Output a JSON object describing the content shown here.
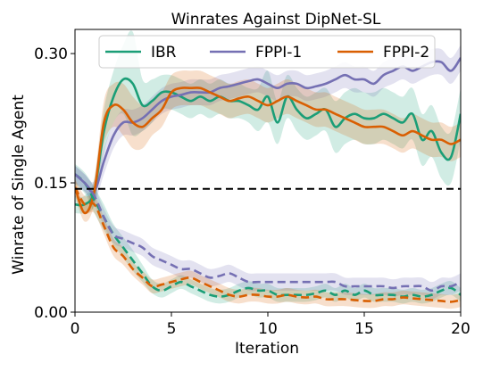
{
  "chart_data": {
    "type": "line",
    "title": "Winrates Against DipNet-SL",
    "xlabel": "Iteration",
    "ylabel": "Winrate of Single Agent",
    "xlim": [
      0,
      20
    ],
    "ylim": [
      0,
      0.3
    ],
    "xticks": [
      0,
      5,
      10,
      15,
      20
    ],
    "xtick_labels": [
      "0",
      "5",
      "10",
      "15",
      "20"
    ],
    "yticks": [
      0.0,
      0.15,
      0.3
    ],
    "ytick_labels": [
      "0.00",
      "0.15",
      "0.30"
    ],
    "grid": false,
    "legend_position": "top",
    "x": [
      0,
      0.5,
      1,
      1.5,
      2,
      2.5,
      3,
      3.5,
      4,
      4.5,
      5,
      5.5,
      6,
      6.5,
      7,
      7.5,
      8,
      8.5,
      9,
      9.5,
      10,
      10.5,
      11,
      11.5,
      12,
      12.5,
      13,
      13.5,
      14,
      14.5,
      15,
      15.5,
      16,
      16.5,
      17,
      17.5,
      18,
      18.5,
      19,
      19.5,
      20
    ],
    "reference_line": {
      "y": 0.143,
      "style": "dashed",
      "color": "#000000"
    },
    "series": [
      {
        "name": "IBR",
        "color": "#1b9e77",
        "style": "solid",
        "values": [
          0.125,
          0.125,
          0.14,
          0.21,
          0.25,
          0.27,
          0.265,
          0.24,
          0.245,
          0.255,
          0.255,
          0.25,
          0.245,
          0.25,
          0.245,
          0.25,
          0.245,
          0.245,
          0.24,
          0.235,
          0.25,
          0.22,
          0.25,
          0.235,
          0.225,
          0.23,
          0.235,
          0.215,
          0.225,
          0.23,
          0.225,
          0.225,
          0.23,
          0.225,
          0.22,
          0.23,
          0.2,
          0.21,
          0.185,
          0.18,
          0.23
        ],
        "band_half_width": [
          0.01,
          0.01,
          0.015,
          0.025,
          0.03,
          0.04,
          0.06,
          0.03,
          0.025,
          0.02,
          0.02,
          0.02,
          0.02,
          0.02,
          0.02,
          0.02,
          0.02,
          0.02,
          0.02,
          0.025,
          0.03,
          0.025,
          0.025,
          0.025,
          0.025,
          0.025,
          0.025,
          0.03,
          0.03,
          0.03,
          0.03,
          0.03,
          0.03,
          0.03,
          0.03,
          0.03,
          0.03,
          0.03,
          0.03,
          0.03,
          0.03
        ]
      },
      {
        "name": "FPPI-1",
        "color": "#7570b3",
        "style": "solid",
        "values": [
          0.16,
          0.15,
          0.14,
          0.175,
          0.205,
          0.22,
          0.22,
          0.225,
          0.235,
          0.245,
          0.25,
          0.252,
          0.255,
          0.255,
          0.255,
          0.26,
          0.262,
          0.265,
          0.268,
          0.27,
          0.265,
          0.26,
          0.265,
          0.265,
          0.26,
          0.262,
          0.265,
          0.27,
          0.275,
          0.27,
          0.27,
          0.265,
          0.275,
          0.28,
          0.285,
          0.28,
          0.285,
          0.29,
          0.29,
          0.28,
          0.295
        ],
        "band_half_width": [
          0.01,
          0.01,
          0.012,
          0.015,
          0.015,
          0.015,
          0.015,
          0.015,
          0.015,
          0.015,
          0.015,
          0.015,
          0.015,
          0.015,
          0.015,
          0.015,
          0.015,
          0.015,
          0.015,
          0.015,
          0.015,
          0.015,
          0.015,
          0.015,
          0.015,
          0.015,
          0.015,
          0.015,
          0.015,
          0.015,
          0.015,
          0.015,
          0.015,
          0.015,
          0.015,
          0.015,
          0.015,
          0.015,
          0.015,
          0.015,
          0.015
        ]
      },
      {
        "name": "FPPI-2",
        "color": "#d95f02",
        "style": "solid",
        "values": [
          0.145,
          0.115,
          0.14,
          0.22,
          0.24,
          0.235,
          0.22,
          0.215,
          0.225,
          0.235,
          0.255,
          0.26,
          0.26,
          0.26,
          0.255,
          0.25,
          0.245,
          0.248,
          0.25,
          0.245,
          0.24,
          0.245,
          0.25,
          0.245,
          0.24,
          0.235,
          0.235,
          0.23,
          0.225,
          0.22,
          0.215,
          0.215,
          0.215,
          0.21,
          0.205,
          0.21,
          0.205,
          0.2,
          0.2,
          0.195,
          0.2
        ],
        "band_half_width": [
          0.01,
          0.01,
          0.015,
          0.025,
          0.025,
          0.03,
          0.03,
          0.025,
          0.02,
          0.02,
          0.02,
          0.02,
          0.02,
          0.02,
          0.02,
          0.02,
          0.02,
          0.02,
          0.02,
          0.02,
          0.02,
          0.02,
          0.02,
          0.02,
          0.02,
          0.02,
          0.02,
          0.02,
          0.02,
          0.02,
          0.02,
          0.02,
          0.02,
          0.02,
          0.02,
          0.02,
          0.02,
          0.02,
          0.02,
          0.02,
          0.02
        ]
      },
      {
        "color": "#1b9e77",
        "style": "dashed",
        "values": [
          0.16,
          0.15,
          0.13,
          0.11,
          0.09,
          0.075,
          0.06,
          0.045,
          0.03,
          0.025,
          0.03,
          0.035,
          0.03,
          0.025,
          0.02,
          0.018,
          0.02,
          0.025,
          0.028,
          0.025,
          0.025,
          0.02,
          0.02,
          0.02,
          0.02,
          0.022,
          0.025,
          0.02,
          0.025,
          0.02,
          0.025,
          0.02,
          0.02,
          0.02,
          0.018,
          0.02,
          0.018,
          0.02,
          0.025,
          0.028,
          0.02
        ],
        "band_half_width": [
          0.012,
          0.012,
          0.015,
          0.015,
          0.012,
          0.012,
          0.012,
          0.01,
          0.008,
          0.008,
          0.008,
          0.008,
          0.008,
          0.008,
          0.008,
          0.008,
          0.008,
          0.008,
          0.008,
          0.008,
          0.008,
          0.008,
          0.008,
          0.008,
          0.008,
          0.008,
          0.008,
          0.008,
          0.008,
          0.008,
          0.008,
          0.008,
          0.008,
          0.008,
          0.008,
          0.008,
          0.008,
          0.008,
          0.008,
          0.008,
          0.008
        ]
      },
      {
        "color": "#7570b3",
        "style": "dashed",
        "values": [
          0.16,
          0.15,
          0.135,
          0.11,
          0.09,
          0.085,
          0.08,
          0.075,
          0.065,
          0.06,
          0.055,
          0.05,
          0.05,
          0.045,
          0.04,
          0.042,
          0.045,
          0.04,
          0.035,
          0.035,
          0.035,
          0.035,
          0.035,
          0.035,
          0.035,
          0.035,
          0.035,
          0.035,
          0.03,
          0.03,
          0.03,
          0.03,
          0.03,
          0.028,
          0.03,
          0.03,
          0.03,
          0.025,
          0.03,
          0.03,
          0.035
        ],
        "band_half_width": [
          0.01,
          0.01,
          0.01,
          0.01,
          0.01,
          0.01,
          0.01,
          0.01,
          0.01,
          0.01,
          0.01,
          0.01,
          0.01,
          0.01,
          0.01,
          0.01,
          0.01,
          0.01,
          0.01,
          0.01,
          0.01,
          0.01,
          0.01,
          0.01,
          0.01,
          0.01,
          0.01,
          0.01,
          0.01,
          0.01,
          0.01,
          0.01,
          0.01,
          0.01,
          0.01,
          0.01,
          0.01,
          0.01,
          0.01,
          0.01,
          0.01
        ]
      },
      {
        "color": "#d95f02",
        "style": "dashed",
        "values": [
          0.145,
          0.125,
          0.125,
          0.1,
          0.075,
          0.065,
          0.05,
          0.04,
          0.03,
          0.032,
          0.035,
          0.038,
          0.04,
          0.035,
          0.03,
          0.025,
          0.02,
          0.018,
          0.02,
          0.02,
          0.018,
          0.018,
          0.02,
          0.018,
          0.017,
          0.018,
          0.015,
          0.015,
          0.015,
          0.014,
          0.013,
          0.013,
          0.015,
          0.015,
          0.017,
          0.016,
          0.015,
          0.014,
          0.013,
          0.012,
          0.014
        ],
        "band_half_width": [
          0.01,
          0.01,
          0.01,
          0.01,
          0.01,
          0.01,
          0.008,
          0.008,
          0.008,
          0.008,
          0.008,
          0.008,
          0.008,
          0.008,
          0.008,
          0.008,
          0.008,
          0.008,
          0.008,
          0.008,
          0.008,
          0.008,
          0.008,
          0.008,
          0.008,
          0.008,
          0.008,
          0.008,
          0.008,
          0.008,
          0.008,
          0.008,
          0.008,
          0.008,
          0.008,
          0.008,
          0.008,
          0.008,
          0.008,
          0.008,
          0.008
        ]
      }
    ]
  }
}
